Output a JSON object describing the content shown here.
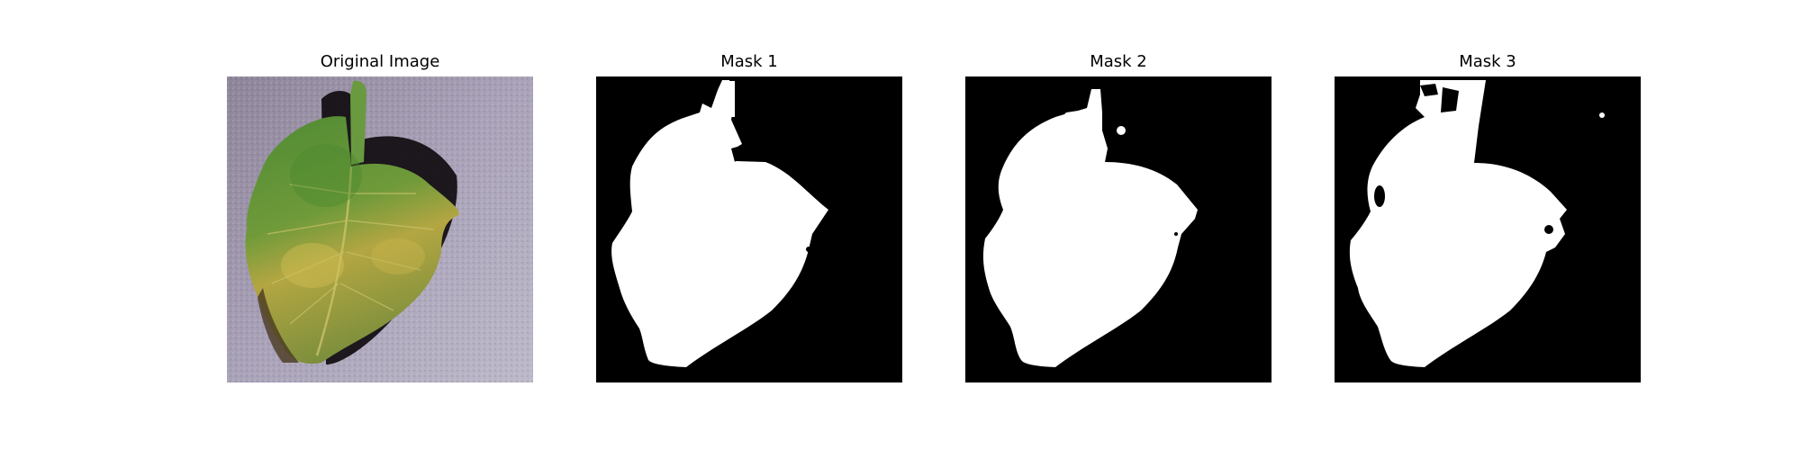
{
  "figure": {
    "panels": [
      {
        "title": "Original Image"
      },
      {
        "title": "Mask 1"
      },
      {
        "title": "Mask 2"
      },
      {
        "title": "Mask 3"
      }
    ],
    "colors": {
      "background": "#ffffff",
      "mask_background": "#000000",
      "mask_foreground": "#ffffff",
      "photo_surface": "#a9a2b8",
      "leaf_green": "#5f8f3a",
      "leaf_yellow": "#b5a844",
      "leaf_shadow": "#141014"
    }
  }
}
